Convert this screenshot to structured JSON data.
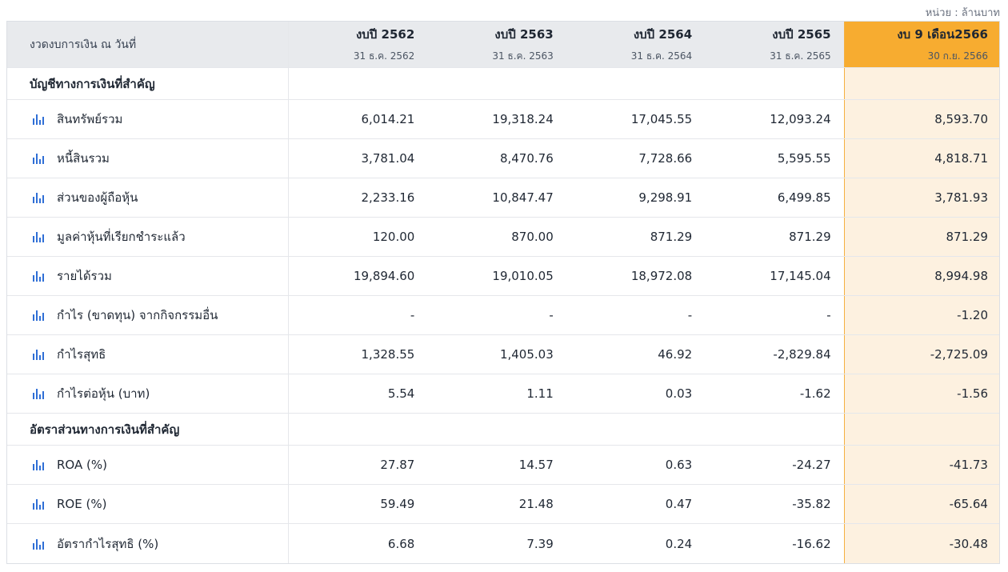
{
  "unit_note": "หน่วย : ล้านบาท",
  "header": {
    "label": "งวดงบการเงิน ณ วันที่",
    "columns": [
      {
        "year": "งบปี 2562",
        "date": "31 ธ.ค. 2562"
      },
      {
        "year": "งบปี 2563",
        "date": "31 ธ.ค. 2563"
      },
      {
        "year": "งบปี 2564",
        "date": "31 ธ.ค. 2564"
      },
      {
        "year": "งบปี 2565",
        "date": "31 ธ.ค. 2565"
      },
      {
        "year": "งบ 9 เดือน2566",
        "date": "30 ก.ย. 2566"
      }
    ]
  },
  "sections": [
    {
      "title": "บัญชีทางการเงินที่สำคัญ",
      "rows": [
        {
          "label": "สินทรัพย์รวม",
          "values": [
            "6,014.21",
            "19,318.24",
            "17,045.55",
            "12,093.24",
            "8,593.70"
          ]
        },
        {
          "label": "หนี้สินรวม",
          "values": [
            "3,781.04",
            "8,470.76",
            "7,728.66",
            "5,595.55",
            "4,818.71"
          ]
        },
        {
          "label": "ส่วนของผู้ถือหุ้น",
          "values": [
            "2,233.16",
            "10,847.47",
            "9,298.91",
            "6,499.85",
            "3,781.93"
          ]
        },
        {
          "label": "มูลค่าหุ้นที่เรียกชำระแล้ว",
          "values": [
            "120.00",
            "870.00",
            "871.29",
            "871.29",
            "871.29"
          ]
        },
        {
          "label": "รายได้รวม",
          "values": [
            "19,894.60",
            "19,010.05",
            "18,972.08",
            "17,145.04",
            "8,994.98"
          ]
        },
        {
          "label": "กำไร (ขาดทุน) จากกิจกรรมอื่น",
          "values": [
            "-",
            "-",
            "-",
            "-",
            "-1.20"
          ]
        },
        {
          "label": "กำไรสุทธิ",
          "values": [
            "1,328.55",
            "1,405.03",
            "46.92",
            "-2,829.84",
            "-2,725.09"
          ]
        },
        {
          "label": "กำไรต่อหุ้น (บาท)",
          "values": [
            "5.54",
            "1.11",
            "0.03",
            "-1.62",
            "-1.56"
          ]
        }
      ]
    },
    {
      "title": "อัตราส่วนทางการเงินที่สำคัญ",
      "rows": [
        {
          "label": "ROA (%)",
          "values": [
            "27.87",
            "14.57",
            "0.63",
            "-24.27",
            "-41.73"
          ]
        },
        {
          "label": "ROE (%)",
          "values": [
            "59.49",
            "21.48",
            "0.47",
            "-35.82",
            "-65.64"
          ]
        },
        {
          "label": "อัตรากำไรสุทธิ (%)",
          "values": [
            "6.68",
            "7.39",
            "0.24",
            "-16.62",
            "-30.48"
          ]
        }
      ]
    }
  ],
  "icon": "bar-chart-icon",
  "colors": {
    "highlight_header": "#f7ac30",
    "highlight_cell": "#fdf1e0",
    "icon": "#2f6fd6",
    "header_bg": "#e8eaed"
  }
}
